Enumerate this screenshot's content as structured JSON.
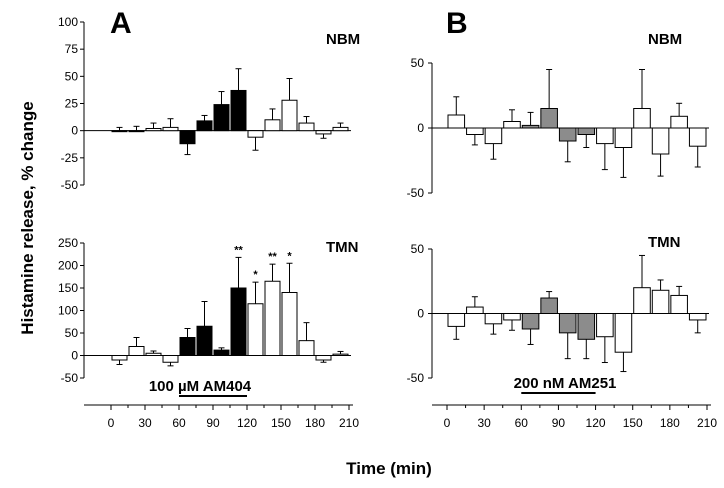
{
  "figure": {
    "ylabel": "Histamine release, % change",
    "xlabel": "Time (min)"
  },
  "chart_data": [
    {
      "id": "A-NBM",
      "panel": "A",
      "region": "NBM",
      "type": "bar",
      "ylim": [
        -50,
        100
      ],
      "yticks": [
        -50,
        -25,
        0,
        25,
        50,
        75,
        100
      ],
      "x": [
        0,
        15,
        30,
        45,
        60,
        75,
        90,
        105,
        120,
        135,
        150,
        165,
        180,
        195
      ],
      "values": [
        0,
        0,
        2,
        3,
        -12,
        9,
        24,
        37,
        -6,
        10,
        28,
        7,
        -3,
        3
      ],
      "errors": [
        3,
        4,
        5,
        8,
        10,
        5,
        12,
        20,
        12,
        10,
        20,
        6,
        4,
        4
      ],
      "fills": [
        "white",
        "white",
        "white",
        "white",
        "black",
        "black",
        "black",
        "black",
        "white",
        "white",
        "white",
        "white",
        "white",
        "white"
      ]
    },
    {
      "id": "A-TMN",
      "panel": "A",
      "region": "TMN",
      "type": "bar",
      "ylim": [
        -50,
        250
      ],
      "yticks": [
        -50,
        0,
        50,
        100,
        150,
        200,
        250
      ],
      "x": [
        0,
        15,
        30,
        45,
        60,
        75,
        90,
        105,
        120,
        135,
        150,
        165,
        180,
        195
      ],
      "values": [
        -10,
        20,
        5,
        -15,
        40,
        65,
        12,
        150,
        115,
        165,
        140,
        33,
        -10,
        3
      ],
      "errors": [
        10,
        20,
        5,
        8,
        20,
        55,
        5,
        68,
        48,
        38,
        65,
        40,
        5,
        6
      ],
      "fills": [
        "white",
        "white",
        "white",
        "white",
        "black",
        "black",
        "black",
        "black",
        "white",
        "white",
        "white",
        "white",
        "white",
        "white"
      ],
      "significance": [
        "",
        "",
        "",
        "",
        "",
        "",
        "",
        "**",
        "*",
        "**",
        "*",
        "",
        "",
        ""
      ],
      "treatment": "100 µM AM404",
      "xticks": [
        0,
        30,
        60,
        90,
        120,
        150,
        180,
        210
      ]
    },
    {
      "id": "B-NBM",
      "panel": "B",
      "region": "NBM",
      "type": "bar",
      "ylim": [
        -50,
        50
      ],
      "yticks": [
        -50,
        0,
        50
      ],
      "x": [
        0,
        15,
        30,
        45,
        60,
        75,
        90,
        105,
        120,
        135,
        150,
        165,
        180,
        195
      ],
      "values": [
        10,
        -5,
        -12,
        5,
        2,
        15,
        -10,
        -5,
        -12,
        -15,
        15,
        -20,
        9,
        -14
      ],
      "errors": [
        14,
        8,
        12,
        9,
        10,
        30,
        16,
        10,
        20,
        23,
        30,
        17,
        10,
        16
      ],
      "fills": [
        "white",
        "white",
        "white",
        "white",
        "gray",
        "gray",
        "gray",
        "gray",
        "white",
        "white",
        "white",
        "white",
        "white",
        "white"
      ]
    },
    {
      "id": "B-TMN",
      "panel": "B",
      "region": "TMN",
      "type": "bar",
      "ylim": [
        -50,
        50
      ],
      "yticks": [
        -50,
        0,
        50
      ],
      "x": [
        0,
        15,
        30,
        45,
        60,
        75,
        90,
        105,
        120,
        135,
        150,
        165,
        180,
        195
      ],
      "values": [
        -10,
        5,
        -8,
        -5,
        -12,
        12,
        -15,
        -20,
        -18,
        -30,
        20,
        18,
        14,
        -5
      ],
      "errors": [
        10,
        8,
        8,
        8,
        12,
        5,
        20,
        15,
        20,
        15,
        25,
        8,
        7,
        10
      ],
      "fills": [
        "white",
        "white",
        "white",
        "white",
        "gray",
        "gray",
        "gray",
        "gray",
        "white",
        "white",
        "white",
        "white",
        "white",
        "white"
      ],
      "treatment": "200 nM AM251",
      "xticks": [
        0,
        30,
        60,
        90,
        120,
        150,
        180,
        210
      ]
    }
  ],
  "panels": {
    "A": {
      "letter": "A",
      "nbm": "NBM",
      "tmn": "TMN",
      "treatment": "100 µM AM404"
    },
    "B": {
      "letter": "B",
      "nbm": "NBM",
      "tmn": "TMN",
      "treatment": "200 nM AM251"
    }
  },
  "colors": {
    "black": "#000000",
    "gray": "#8c8c8c",
    "white": "#ffffff"
  }
}
